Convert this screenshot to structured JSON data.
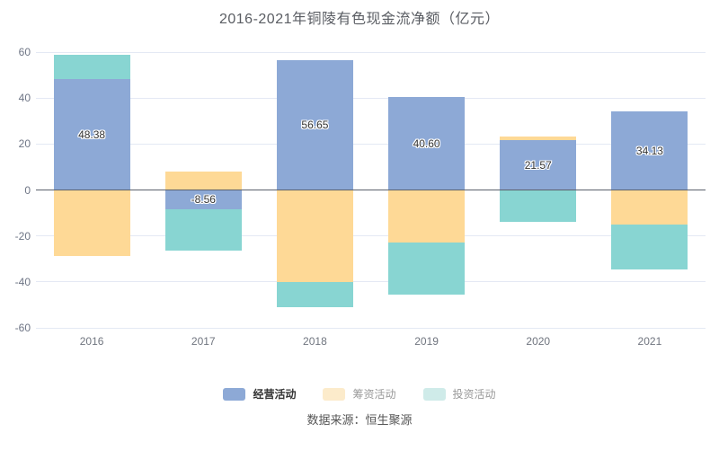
{
  "source_label": "数据来源：恒生聚源",
  "chart_data": {
    "type": "bar",
    "stacked": true,
    "title": "2016-2021年铜陵有色现金流净额（亿元）",
    "categories": [
      "2016",
      "2017",
      "2018",
      "2019",
      "2020",
      "2021"
    ],
    "series": [
      {
        "name": "经营活动",
        "color": "#8da9d6",
        "values": [
          48.38,
          -8.56,
          56.65,
          40.6,
          21.57,
          34.13
        ],
        "labels": [
          "48.38",
          "-8.56",
          "56.65",
          "40.60",
          "21.57",
          "34.13"
        ]
      },
      {
        "name": "筹资活动",
        "color": "#fed996",
        "values": [
          -28.7,
          8.1,
          -40.2,
          -22.8,
          1.5,
          -15.2
        ]
      },
      {
        "name": "投资活动",
        "color": "#88d5d2",
        "values": [
          10.4,
          -17.7,
          -10.8,
          -22.9,
          -13.9,
          -19.3
        ]
      }
    ],
    "ylim": [
      -60,
      60
    ],
    "ytick_step": 20,
    "grid": true,
    "legend_position": "bottom",
    "legend": [
      {
        "label": "经营活动",
        "swatch": "#8da9d6",
        "emphasis": true
      },
      {
        "label": "筹资活动",
        "swatch": "#fcebcb",
        "emphasis": false
      },
      {
        "label": "投资活动",
        "swatch": "#cfebe9",
        "emphasis": false
      }
    ]
  },
  "colors": {
    "background": "#ffffff",
    "operating": "#8da9d6",
    "financing": "#fed996",
    "investing": "#88d5d2",
    "gridline": "#e4e9f4",
    "zero_line": "#5b616c",
    "axis_label": "#6e7585",
    "title_text": "#5a5d63",
    "bar_label": "#333333",
    "legend_active_text": "#333333",
    "legend_inactive_text": "#999999",
    "source_text": "#555555"
  }
}
